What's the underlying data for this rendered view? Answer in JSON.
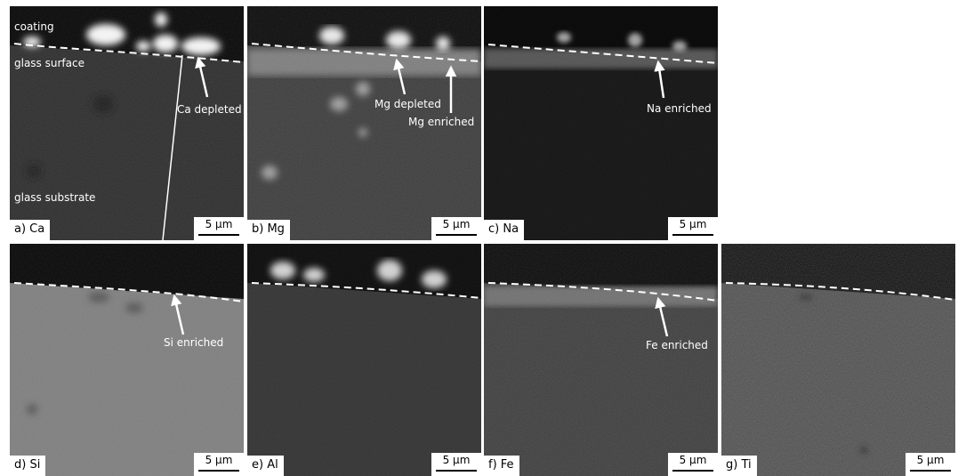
{
  "panels": [
    {
      "id": "a",
      "label": "a) Ca",
      "scale": "5 µm"
    },
    {
      "id": "b",
      "label": "b) Mg",
      "scale": "5 µm"
    },
    {
      "id": "c",
      "label": "c) Na",
      "scale": "5 µm"
    },
    {
      "id": "d",
      "label": "d) Si",
      "scale": "5 µm"
    },
    {
      "id": "e",
      "label": "e) Al",
      "scale": "5 µm"
    },
    {
      "id": "f",
      "label": "f) Fe",
      "scale": "5 µm"
    },
    {
      "id": "g",
      "label": "g) Ti",
      "scale": "5 µm"
    }
  ],
  "annotations": {
    "coating": "coating",
    "glass_surface": "glass surface",
    "glass_substrate": "glass substrate",
    "ca_depleted": "Ca depleted",
    "mg_depleted": "Mg depleted",
    "mg_enriched": "Mg enriched",
    "na_enriched": "Na enriched",
    "si_enriched": "Si enriched",
    "fe_enriched": "Fe enriched"
  }
}
